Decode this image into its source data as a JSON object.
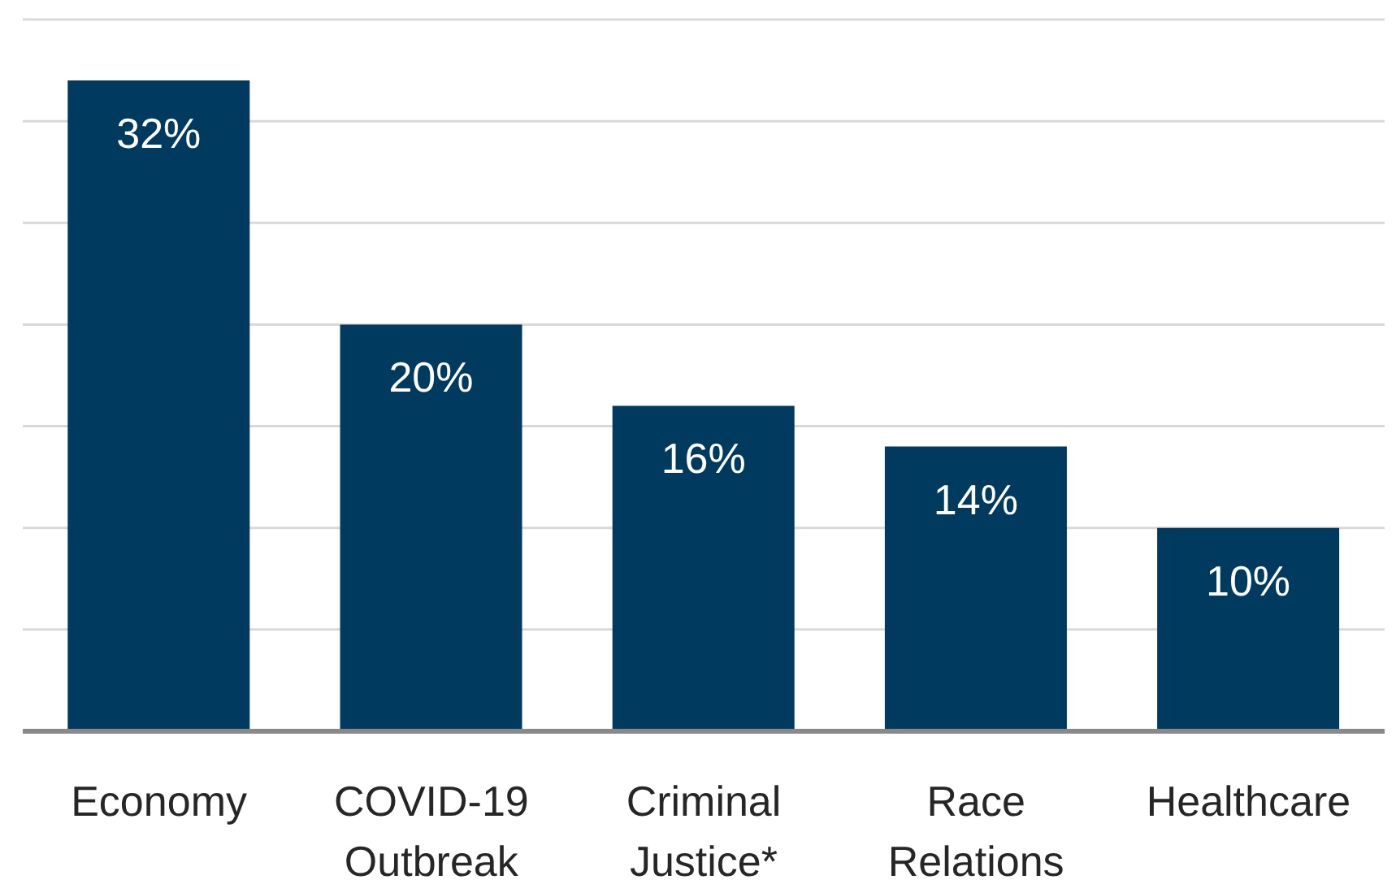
{
  "chart_data": {
    "type": "bar",
    "categories": [
      "Economy",
      "COVID-19 Outbreak",
      "Criminal Justice*",
      "Race Relations",
      "Healthcare"
    ],
    "values": [
      32,
      20,
      16,
      14,
      10
    ],
    "value_labels": [
      "32%",
      "20%",
      "16%",
      "14%",
      "10%"
    ],
    "color": "#003a5e",
    "ylim": [
      0,
      35
    ],
    "yticks": [
      {
        "value": 0,
        "label": null
      },
      {
        "value": 5,
        "label": null
      },
      {
        "value": 10,
        "label": null
      },
      {
        "value": 15,
        "label": null
      },
      {
        "value": 20,
        "label": null
      },
      {
        "value": 25,
        "label": null
      },
      {
        "value": 30,
        "label": null
      },
      {
        "value": 35,
        "label": null
      }
    ],
    "grid": "y",
    "tick_labels": "x"
  }
}
